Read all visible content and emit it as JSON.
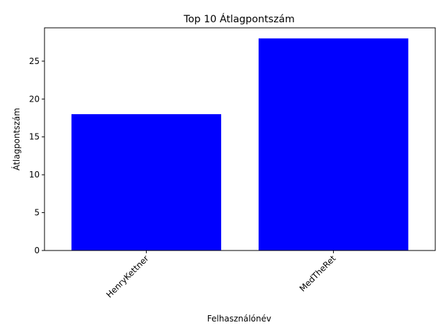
{
  "chart_data": {
    "type": "bar",
    "title": "Top 10 Átlagpontszám",
    "xlabel": "Felhasználónév",
    "ylabel": "Átlagpontszám",
    "categories": [
      "HenryKettner",
      "MedTheRet"
    ],
    "values": [
      18,
      28
    ],
    "ylim": [
      0,
      29.4
    ],
    "yticks": [
      0,
      5,
      10,
      15,
      20,
      25
    ],
    "grid": false,
    "legend": "none",
    "bar_color": "#0000ff"
  }
}
